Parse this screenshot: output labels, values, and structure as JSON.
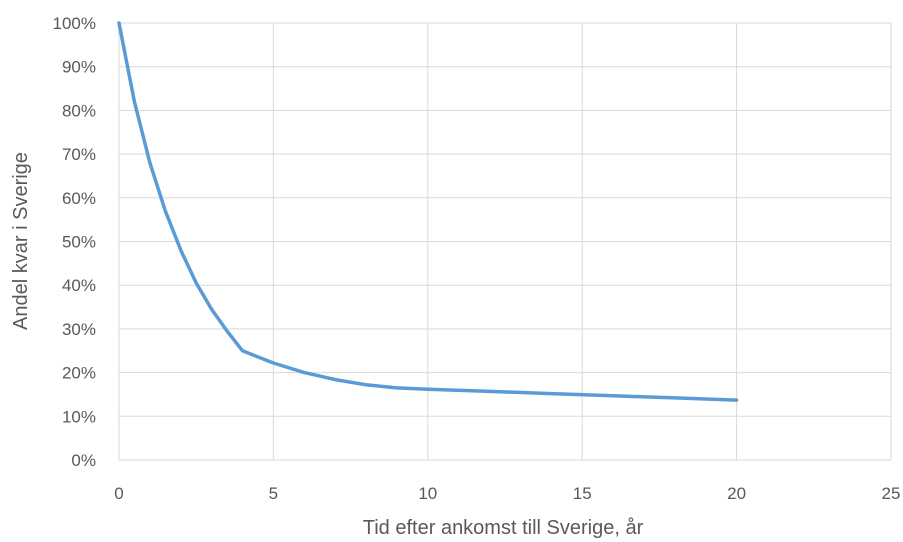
{
  "chart_data": {
    "type": "line",
    "title": "",
    "xlabel": "Tid efter ankomst till Sverige, år",
    "ylabel": "Andel kvar i Sverige",
    "xlim": [
      0,
      25
    ],
    "ylim": [
      0,
      1
    ],
    "x_ticks": [
      0,
      5,
      10,
      15,
      20,
      25
    ],
    "y_ticks": [
      0,
      0.1,
      0.2,
      0.3,
      0.4,
      0.5,
      0.6,
      0.7,
      0.8,
      0.9,
      1.0
    ],
    "x_tick_labels": [
      "0",
      "5",
      "10",
      "15",
      "20",
      "25"
    ],
    "y_tick_labels": [
      "0%",
      "10%",
      "20%",
      "30%",
      "40%",
      "50%",
      "60%",
      "70%",
      "80%",
      "90%",
      "100%"
    ],
    "grid": true,
    "legend": "none",
    "colors": {
      "line": "#5b9bd5",
      "grid": "#d9d9d9",
      "text": "#595959"
    },
    "series": [
      {
        "x": [
          0,
          0.5,
          1,
          1.5,
          2,
          2.5,
          3,
          3.5,
          4,
          5,
          6,
          7,
          8,
          9,
          10,
          12,
          14,
          16,
          18,
          20
        ],
        "values": [
          1.0,
          0.82,
          0.68,
          0.57,
          0.48,
          0.405,
          0.345,
          0.295,
          0.25,
          0.222,
          0.2,
          0.184,
          0.172,
          0.165,
          0.162,
          0.157,
          0.152,
          0.147,
          0.142,
          0.137
        ]
      }
    ]
  }
}
